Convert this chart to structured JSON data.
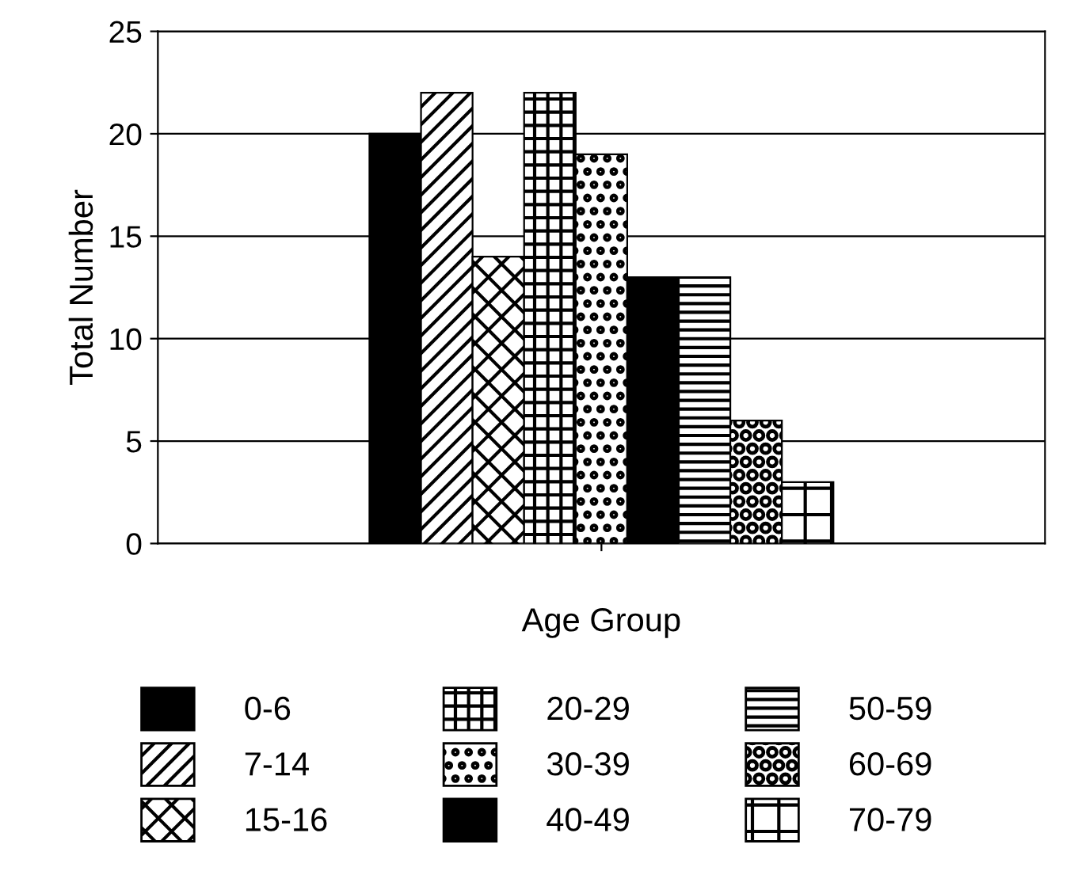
{
  "chart_data": {
    "type": "bar",
    "xlabel": "Age Group",
    "ylabel": "Total Number",
    "categories": [
      null
    ],
    "series": [
      {
        "name": "0-6",
        "color": "#000000",
        "values": [
          20
        ]
      },
      {
        "name": "7-14",
        "color": "#000000",
        "values": [
          22
        ]
      },
      {
        "name": "15-16",
        "color": "#000000",
        "values": [
          14
        ]
      },
      {
        "name": "20-29",
        "color": "#000000",
        "values": [
          22
        ]
      },
      {
        "name": "30-39",
        "color": "#000000",
        "values": [
          19
        ]
      },
      {
        "name": "40-49",
        "color": "#000000",
        "values": [
          13
        ]
      },
      {
        "name": "50-59",
        "color": "#000000",
        "values": [
          13
        ]
      },
      {
        "name": "60-69",
        "color": "#000000",
        "values": [
          6
        ]
      },
      {
        "name": "70-79",
        "color": "#000000",
        "values": [
          3
        ]
      }
    ],
    "ylim": [
      0,
      25
    ],
    "yticks": [
      0,
      5,
      10,
      15,
      20,
      25
    ],
    "grid": "y",
    "legend": "bottom"
  }
}
